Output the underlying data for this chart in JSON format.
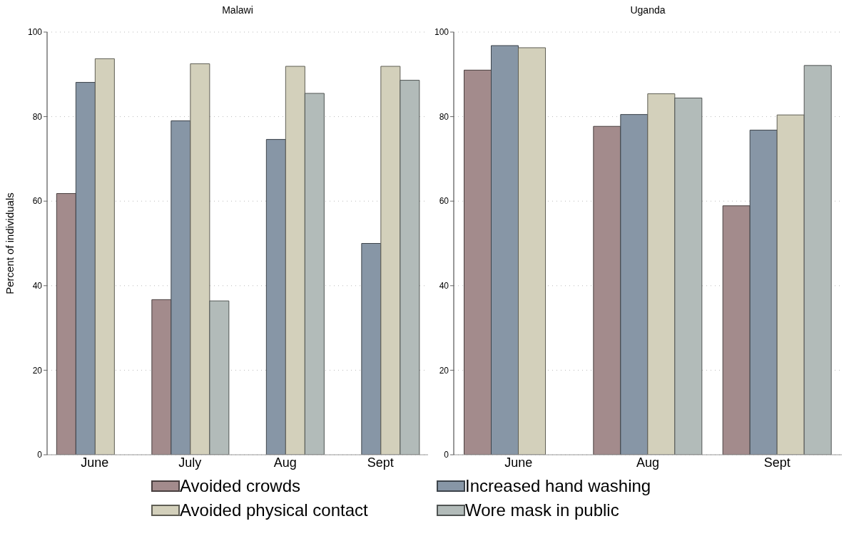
{
  "chart_data": [
    {
      "type": "bar",
      "title": "Malawi",
      "ylabel": "Percent of individuals",
      "categories": [
        "June",
        "July",
        "Aug",
        "Sept"
      ],
      "ylim": [
        0,
        100
      ],
      "yticks": [
        0,
        20,
        40,
        60,
        80,
        100
      ],
      "grid": "y",
      "legend": "bottom",
      "series": [
        {
          "name": "Avoided crowds",
          "color": "#a38b8c",
          "values": [
            61.8,
            36.7,
            null,
            null
          ]
        },
        {
          "name": "Increased hand washing",
          "color": "#8796a6",
          "values": [
            88.1,
            79.0,
            74.6,
            50.0
          ]
        },
        {
          "name": "Avoided physical contact",
          "color": "#d3d0bb",
          "values": [
            93.7,
            92.5,
            91.9,
            91.9
          ]
        },
        {
          "name": "Wore mask in public",
          "color": "#b2bbb9",
          "values": [
            null,
            36.4,
            85.5,
            88.6
          ]
        }
      ]
    },
    {
      "type": "bar",
      "title": "Uganda",
      "categories": [
        "June",
        "Aug",
        "Sept"
      ],
      "ylim": [
        0,
        100
      ],
      "yticks": [
        0,
        20,
        40,
        60,
        80,
        100
      ],
      "grid": "y",
      "series": [
        {
          "color": "#a38b8c",
          "values": [
            91.0,
            77.7,
            58.9
          ]
        },
        {
          "color": "#8796a6",
          "values": [
            96.8,
            80.5,
            76.8
          ]
        },
        {
          "color": "#d3d0bb",
          "values": [
            96.3,
            85.4,
            80.4
          ]
        },
        {
          "color": "#b2bbb9",
          "values": [
            null,
            84.4,
            92.1
          ]
        }
      ]
    }
  ]
}
